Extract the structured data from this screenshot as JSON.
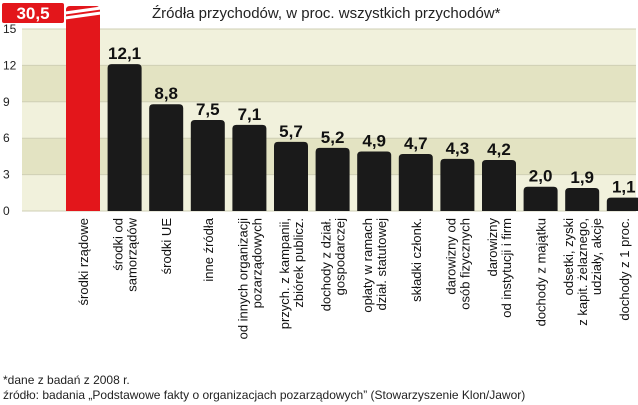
{
  "chart_data": {
    "type": "bar",
    "title": "Źródła przychodów, w proc. wszystkich przychodów*",
    "ylim": [
      0,
      15
    ],
    "yticks": [
      "0",
      "3",
      "6",
      "9",
      "12",
      "15"
    ],
    "categories": [
      [
        "środki rządowe"
      ],
      [
        "środki od",
        "samorządów"
      ],
      [
        "środki UE"
      ],
      [
        "inne źródła"
      ],
      [
        "od innych organizacji",
        "pozarządowych"
      ],
      [
        "przych. z kampanii,",
        "zbiórek publicz."
      ],
      [
        "dochody z dział.",
        "gospodarczej"
      ],
      [
        "opłaty w ramach",
        "dział. statutowej"
      ],
      [
        "składki członk."
      ],
      [
        "darowizny od",
        "osób fizycznych"
      ],
      [
        "darowizny",
        "od instytucji i firm"
      ],
      [
        "dochody z majątku"
      ],
      [
        "odsetki, zyski",
        "z kapit. żelaznego,",
        "udziały, akcje"
      ],
      [
        "dochody z 1 proc."
      ]
    ],
    "values": [
      30.5,
      12.1,
      8.8,
      7.5,
      7.1,
      5.7,
      5.2,
      4.9,
      4.7,
      4.3,
      4.2,
      2.0,
      1.9,
      1.1
    ],
    "value_labels": [
      "30,5",
      "12,1",
      "8,8",
      "7,5",
      "7,1",
      "5,7",
      "5,2",
      "4,9",
      "4,7",
      "4,3",
      "4,2",
      "2,0",
      "1,9",
      "1,1"
    ],
    "highlight_index": 0,
    "colors": {
      "bar": "#1a1a1a",
      "highlight": "#e3161b",
      "band_light": "#f1f1dc",
      "band_dark": "#e3e3c2",
      "grid": "#cfcfb4"
    }
  },
  "footnotes": {
    "note": "*dane z badań z 2008 r.",
    "source": "źródło: badania „Podstawowe fakty o organizacjach pozarządowych” (Stowarzyszenie Klon/Jawor)"
  }
}
